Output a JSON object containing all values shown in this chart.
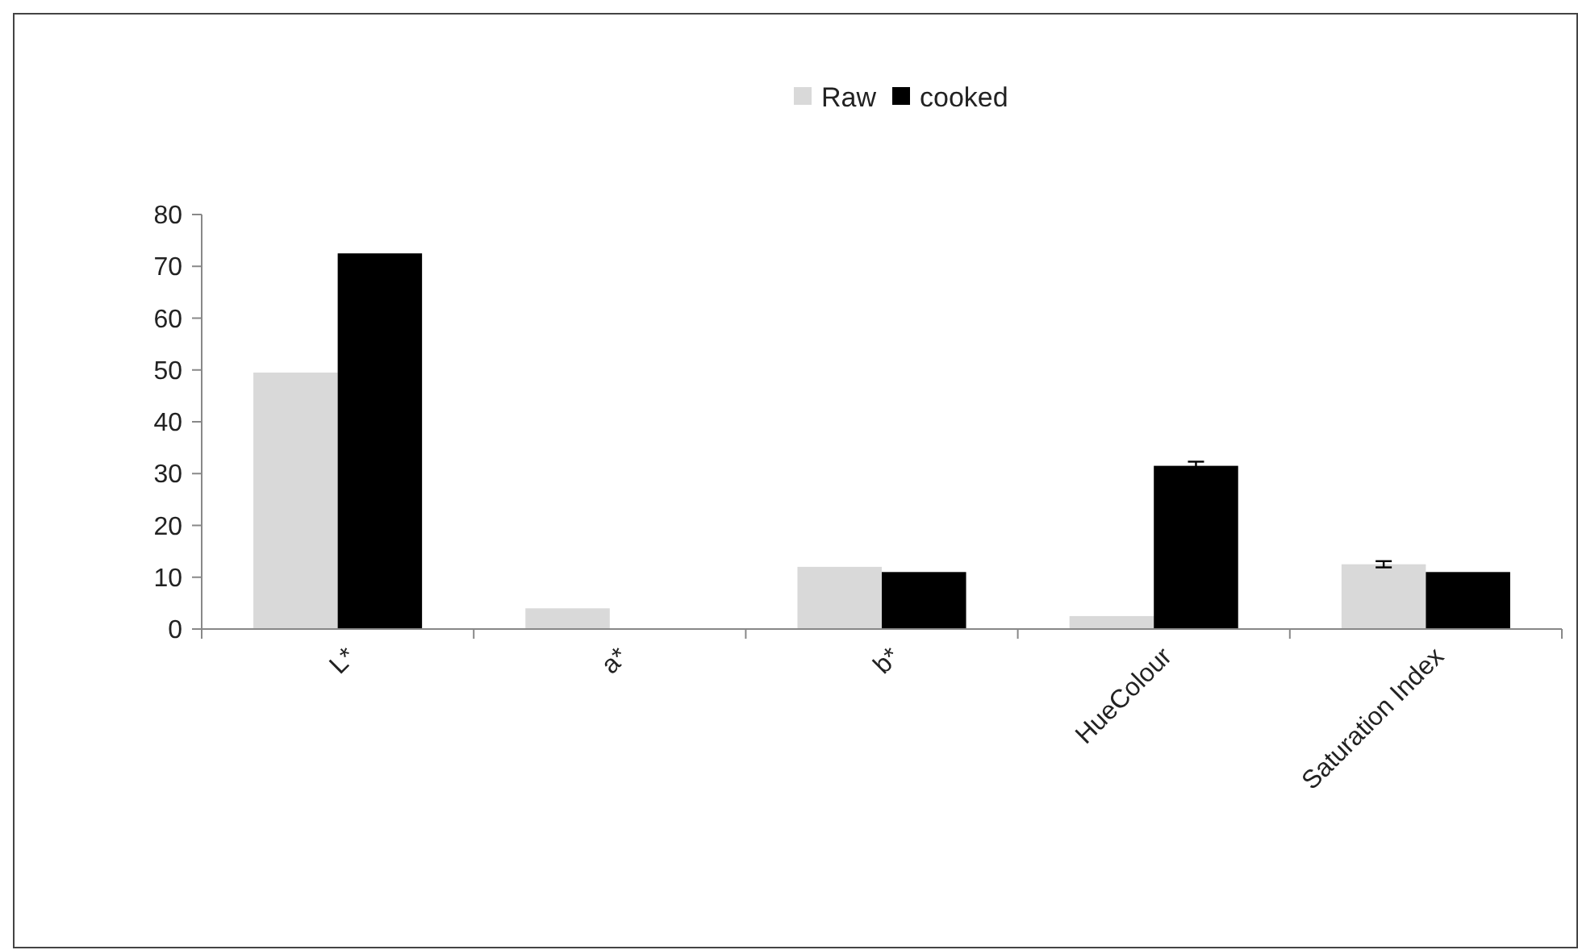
{
  "chart_data": {
    "type": "bar",
    "categories": [
      "L*",
      "a*",
      "b*",
      "HueColour",
      "Saturation Index"
    ],
    "series": [
      {
        "name": "Raw",
        "color": "#d9d9d9",
        "values": [
          49.5,
          4,
          12,
          2.5,
          12.5
        ],
        "errors": [
          null,
          null,
          null,
          null,
          0.6
        ]
      },
      {
        "name": "cooked",
        "color": "#000000",
        "values": [
          72.5,
          0,
          11,
          31.5,
          11
        ],
        "errors": [
          null,
          null,
          null,
          0.8,
          null
        ]
      }
    ],
    "ylim": [
      0,
      80
    ],
    "yticks": [
      0,
      10,
      20,
      30,
      40,
      50,
      60,
      70,
      80
    ],
    "legend": "top",
    "grid": false
  }
}
